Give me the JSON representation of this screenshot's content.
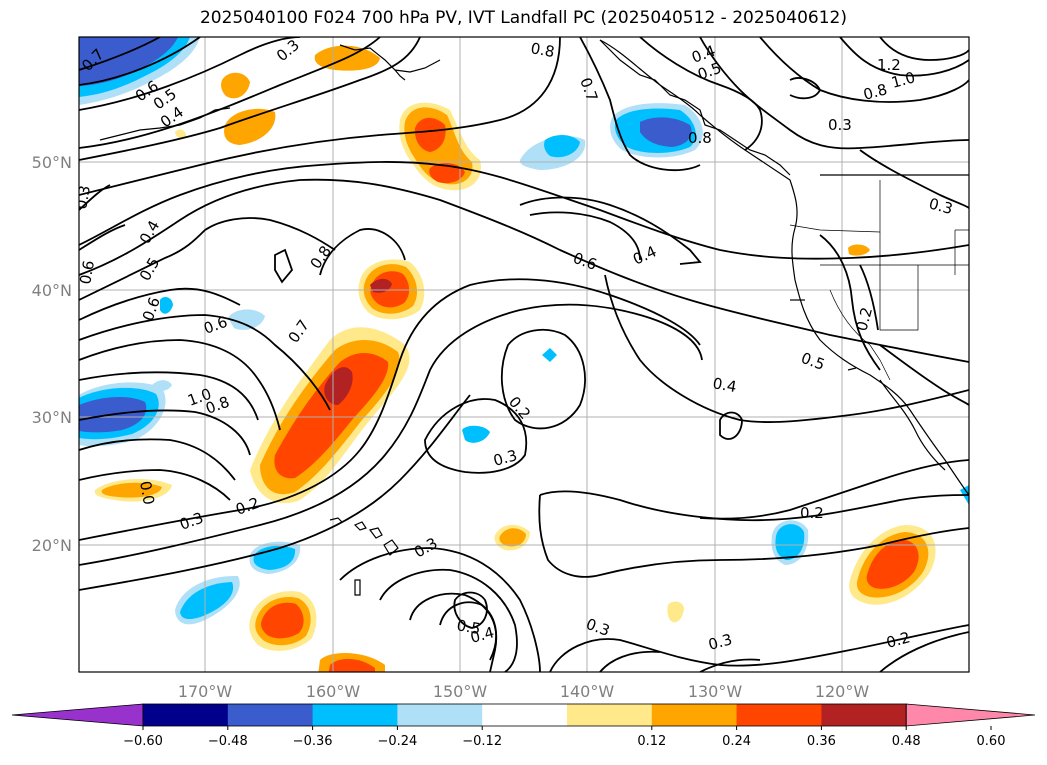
{
  "title": "2025040100 F024 700 hPa PV, IVT Landfall PC (2025040512 - 2025040612)",
  "axes": {
    "lat_ticks": [
      "50°N",
      "40°N",
      "30°N",
      "20°N"
    ],
    "lon_ticks": [
      "170°W",
      "160°W",
      "150°W",
      "140°W",
      "130°W",
      "120°W"
    ]
  },
  "contour_labels": [
    "0.7",
    "0.6",
    "0.5",
    "0.4",
    "0.3",
    "0.8",
    "0.4",
    "0.5",
    "0.7",
    "0.8",
    "1.2",
    "1.0",
    "0.8",
    "0.3",
    "0.3",
    "0.3",
    "0.4",
    "0.5",
    "0.6",
    "0.6",
    "0.8",
    "0.7",
    "0.6",
    "0.4",
    "0.6",
    "1.0",
    "0.8",
    "0.2",
    "0.3",
    "0.4",
    "0.5",
    "0.2",
    "0.3",
    "0.2",
    "0.3",
    "0.5",
    "0.4",
    "0.3",
    "0.2",
    "0.2",
    "0.3",
    "0.0"
  ],
  "colorbar": {
    "ticks": [
      "−0.60",
      "−0.48",
      "−0.36",
      "−0.24",
      "−0.12",
      "0.12",
      "0.24",
      "0.36",
      "0.48",
      "0.60"
    ],
    "colors": [
      "#9932cc",
      "#00008b",
      "#3a5ccc",
      "#00bfff",
      "#b0e0f8",
      "#ffffff",
      "#ffe98a",
      "#ffa500",
      "#ff4500",
      "#b22222",
      "#ff88aa"
    ]
  }
}
